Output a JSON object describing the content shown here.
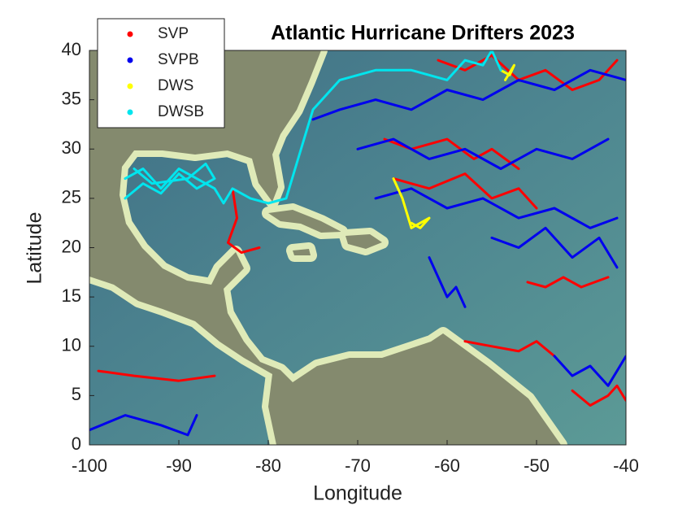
{
  "chart_data": {
    "type": "map",
    "title": "Atlantic Hurricane Drifters 2023",
    "xlabel": "Longitude",
    "ylabel": "Latitude",
    "xlim": [
      -100,
      -40
    ],
    "ylim": [
      0,
      40
    ],
    "xticks": [
      -100,
      -90,
      -80,
      -70,
      -60,
      -50,
      -40
    ],
    "yticks": [
      0,
      5,
      10,
      15,
      20,
      25,
      30,
      35,
      40
    ],
    "legend": "upper left",
    "series": [
      {
        "name": "SVP",
        "color": "#ff0000",
        "x": [
          -84,
          -83.5,
          -84.5,
          -83,
          -81,
          null,
          -67,
          -64,
          -60,
          -57,
          -55,
          -52,
          null,
          -58,
          -55,
          -52,
          -50,
          -48,
          null,
          -61,
          -58,
          -55,
          -52,
          -49,
          -46,
          -43,
          -41,
          null,
          -99,
          -95,
          -90,
          -86,
          null,
          -46,
          -44,
          -42,
          -41,
          -40,
          null,
          -66,
          -62,
          -58,
          -55,
          -52,
          -50,
          null,
          -51,
          -49,
          -47,
          -45,
          -42
        ],
        "y": [
          26,
          23,
          20.5,
          19.5,
          20,
          null,
          31,
          30,
          31,
          29,
          30,
          28,
          null,
          10.5,
          10,
          9.5,
          10.5,
          9,
          null,
          39,
          38,
          39.5,
          37,
          38,
          36,
          37,
          39,
          null,
          7.5,
          7,
          6.5,
          7,
          null,
          5.5,
          4,
          5,
          6,
          4.5,
          null,
          27,
          26,
          27.5,
          25,
          26,
          24,
          null,
          16.5,
          16,
          17,
          16,
          17
        ]
      },
      {
        "name": "SVPB",
        "color": "#0000ee",
        "x": [
          -75,
          -72,
          -68,
          -64,
          -60,
          -56,
          -52,
          -48,
          -44,
          -40,
          null,
          -70,
          -66,
          -62,
          -58,
          -54,
          -50,
          -46,
          -42,
          null,
          -68,
          -64,
          -60,
          -56,
          -52,
          -48,
          -44,
          -41,
          null,
          -100,
          -96,
          -92,
          -89,
          -88,
          null,
          -62,
          -61,
          -60,
          -59,
          -58,
          null,
          -48,
          -46,
          -44,
          -42,
          -40,
          null,
          -55,
          -52,
          -49,
          -46,
          -43,
          -41
        ],
        "y": [
          33,
          34,
          35,
          34,
          36,
          35,
          37,
          36,
          38,
          37,
          null,
          30,
          31,
          29,
          30,
          28,
          30,
          29,
          31,
          null,
          25,
          26,
          24,
          25,
          23,
          24,
          22,
          23,
          null,
          1.5,
          3,
          2,
          1,
          3,
          null,
          19,
          17,
          15,
          16,
          14,
          null,
          9,
          7,
          8,
          6,
          9,
          null,
          21,
          20,
          22,
          19,
          21,
          18
        ]
      },
      {
        "name": "DWS",
        "color": "#ffff00",
        "x": [
          -66,
          -65,
          -64.5,
          -64,
          -63,
          -62,
          -63,
          -64,
          null,
          -54,
          -53,
          -52.5,
          -53.5
        ],
        "y": [
          27,
          25,
          23.5,
          22,
          22.5,
          23,
          22,
          22.5,
          null,
          38,
          37.5,
          38.5,
          37
        ]
      },
      {
        "name": "DWSB",
        "color": "#00e5ee",
        "x": [
          -96,
          -94,
          -92,
          -90,
          -88,
          -86,
          -85,
          -84,
          -82,
          -80,
          -78,
          -77,
          -76,
          -75,
          -72,
          -68,
          -64,
          -60,
          -58,
          -56,
          -55,
          -54,
          null,
          -96,
          -94,
          -92,
          -90,
          -88,
          -86,
          -87,
          -89,
          -93,
          -95
        ],
        "y": [
          27,
          28,
          26,
          28,
          27,
          26,
          24.5,
          26,
          25,
          24.5,
          25,
          28,
          31,
          34,
          37,
          38,
          38,
          37,
          39,
          38.5,
          40,
          38,
          null,
          25,
          26.5,
          25.5,
          27.5,
          26,
          27,
          28.5,
          27,
          26.5,
          28
        ]
      }
    ]
  }
}
